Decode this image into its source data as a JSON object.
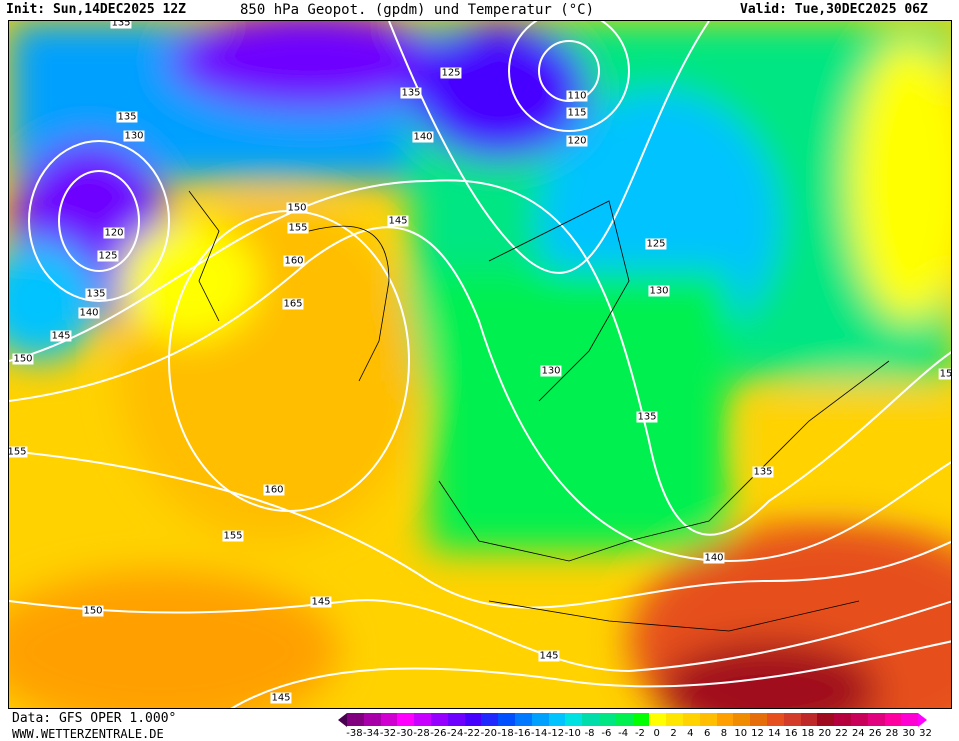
{
  "header": {
    "init": "Init: Sun,14DEC2025 12Z",
    "title": "850 hPa Geopot. (gpdm) und Temperatur (°C)",
    "valid": "Valid: Tue,30DEC2025 06Z"
  },
  "footer": {
    "data_source": "Data: GFS OPER 1.000°",
    "website": "WWW.WETTERZENTRALE.DE"
  },
  "legend": {
    "ticks": [
      "-38",
      "-34",
      "-32",
      "-30",
      "-28",
      "-26",
      "-24",
      "-22",
      "-20",
      "-18",
      "-16",
      "-14",
      "-12",
      "-10",
      "-8",
      "-6",
      "-4",
      "-2",
      "0",
      "2",
      "4",
      "6",
      "8",
      "10",
      "12",
      "14",
      "16",
      "18",
      "20",
      "22",
      "24",
      "26",
      "28",
      "30",
      "32"
    ],
    "colors": [
      "#4a0050",
      "#800080",
      "#a800a8",
      "#d000d0",
      "#ff00ff",
      "#c800ff",
      "#9600ff",
      "#6e00ff",
      "#4600ff",
      "#1e28ff",
      "#0050ff",
      "#0078ff",
      "#00a0ff",
      "#00c3ff",
      "#00e1e1",
      "#00dcaa",
      "#00e682",
      "#00f050",
      "#00ff00",
      "#ffff00",
      "#ffe600",
      "#ffd200",
      "#ffbe00",
      "#ffa000",
      "#f08c00",
      "#e66e0a",
      "#e6501e",
      "#d23c28",
      "#be2828",
      "#a00a1e",
      "#b4003c",
      "#c8005a",
      "#e1007d",
      "#ff00a0",
      "#ff00d2",
      "#ff00ff"
    ],
    "min_color": "#4a0050",
    "max_color": "#ff00ff"
  },
  "contour_labels": [
    "135",
    "125",
    "135",
    "110",
    "115",
    "140",
    "120",
    "135",
    "130",
    "150",
    "155",
    "145",
    "120",
    "125",
    "160",
    "125",
    "135",
    "130",
    "165",
    "140",
    "145",
    "150",
    "130",
    "15",
    "135",
    "155",
    "135",
    "160",
    "155",
    "140",
    "150",
    "145",
    "145",
    "145"
  ]
}
